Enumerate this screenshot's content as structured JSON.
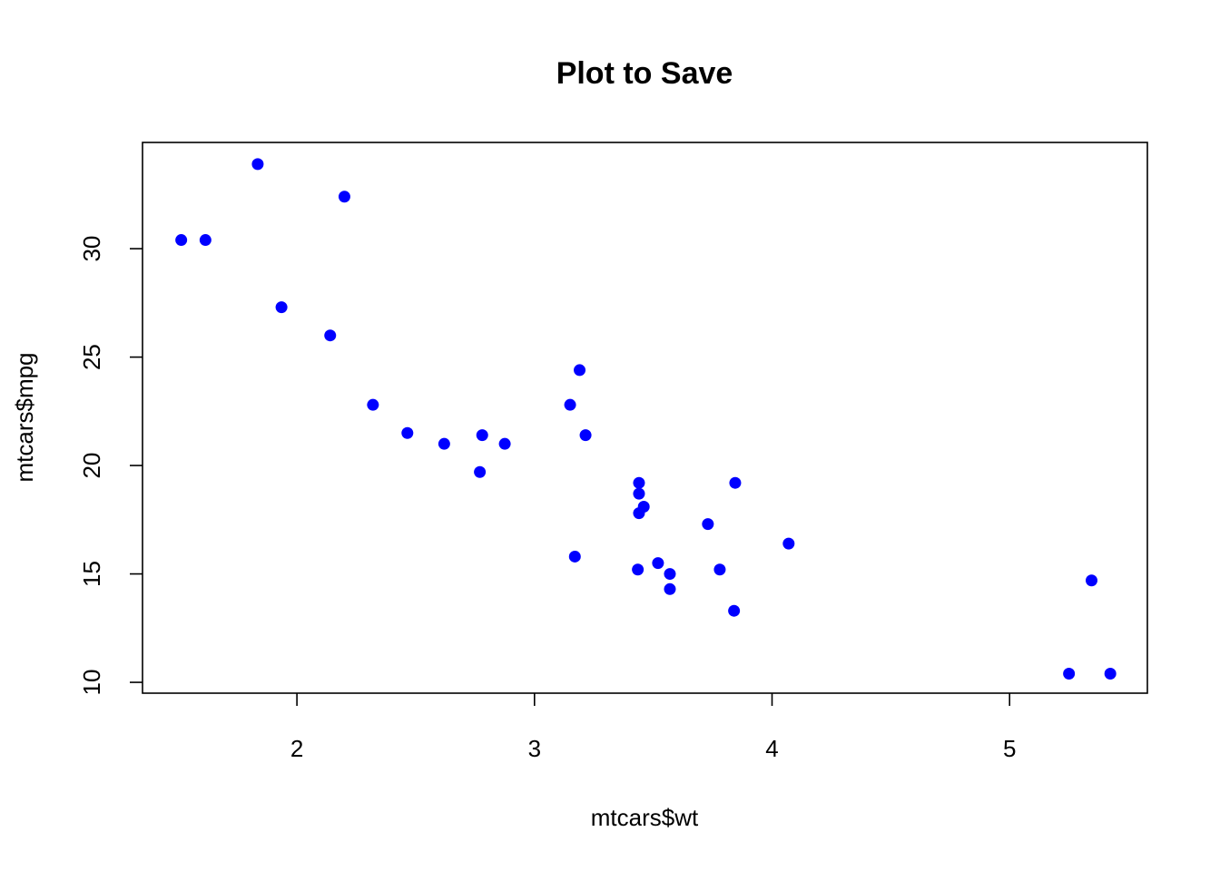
{
  "chart_data": {
    "type": "scatter",
    "title": "Plot to Save",
    "xlabel": "mtcars$wt",
    "ylabel": "mtcars$mpg",
    "xlim": [
      1.35,
      5.58
    ],
    "ylim": [
      9.5,
      34.9
    ],
    "xticks": [
      2,
      3,
      4,
      5
    ],
    "yticks": [
      10,
      15,
      20,
      25,
      30
    ],
    "point_color": "#0000ff",
    "grid": false,
    "legend": "none",
    "x": [
      2.62,
      2.875,
      2.32,
      3.215,
      3.44,
      3.46,
      3.57,
      3.19,
      3.15,
      3.44,
      3.44,
      4.07,
      3.73,
      3.78,
      5.25,
      5.424,
      5.345,
      2.2,
      1.615,
      1.835,
      2.465,
      3.52,
      3.435,
      3.84,
      3.845,
      1.935,
      2.14,
      1.513,
      3.17,
      2.77,
      3.57,
      2.78
    ],
    "y": [
      21.0,
      21.0,
      22.8,
      21.4,
      18.7,
      18.1,
      14.3,
      24.4,
      22.8,
      19.2,
      17.8,
      16.4,
      17.3,
      15.2,
      10.4,
      10.4,
      14.7,
      32.4,
      30.4,
      33.9,
      21.5,
      15.5,
      15.2,
      13.3,
      19.2,
      27.3,
      26.0,
      30.4,
      15.8,
      19.7,
      15.0,
      21.4
    ]
  }
}
